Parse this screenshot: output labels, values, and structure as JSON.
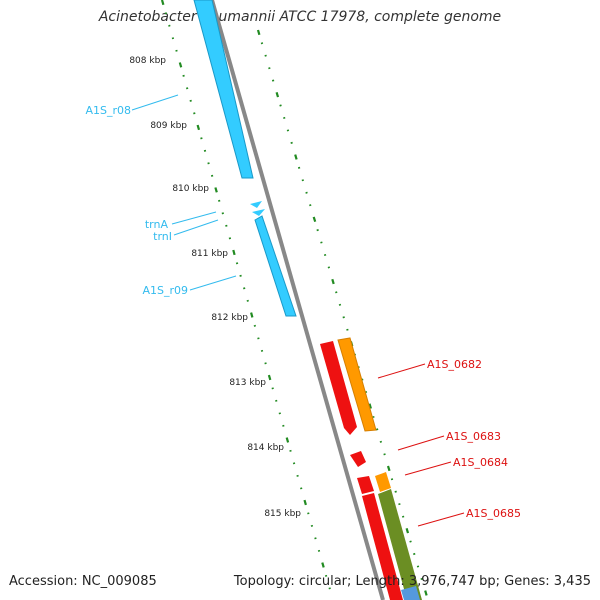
{
  "title": "Acinetobacter baumannii ATCC 17978, complete genome",
  "footer": {
    "accession": "Accession: NC_009085",
    "stats": "Topology: circular; Length: 3,976,747 bp; Genes: 3,435"
  },
  "colors": {
    "background": "#ffffff",
    "backbone": "#888888",
    "rna_feature": "#33ccff",
    "rna_label": "#33bbee",
    "gene_red": "#ee1111",
    "gene_orange": "#ff9900",
    "gene_olive": "#6b8e23",
    "gene_blue": "#5599dd",
    "tick": "#228b22",
    "gene_label": "#dd1111"
  },
  "scale": {
    "unit": "kbp",
    "tick_labels": [
      "808 kbp",
      "809 kbp",
      "810 kbp",
      "811 kbp",
      "812 kbp",
      "813 kbp",
      "814 kbp",
      "815 kbp"
    ]
  },
  "features": [
    {
      "label": "A1S_r08",
      "type": "rRNA",
      "color": "rna_label"
    },
    {
      "label": "trnA",
      "type": "tRNA",
      "color": "rna_label"
    },
    {
      "label": "trnI",
      "type": "tRNA",
      "color": "rna_label"
    },
    {
      "label": "A1S_r09",
      "type": "rRNA",
      "color": "rna_label"
    },
    {
      "label": "A1S_0682",
      "type": "gene",
      "color": "gene_label"
    },
    {
      "label": "A1S_0683",
      "type": "gene",
      "color": "gene_label"
    },
    {
      "label": "A1S_0684",
      "type": "gene",
      "color": "gene_label"
    },
    {
      "label": "A1S_0685",
      "type": "gene",
      "color": "gene_label"
    }
  ]
}
